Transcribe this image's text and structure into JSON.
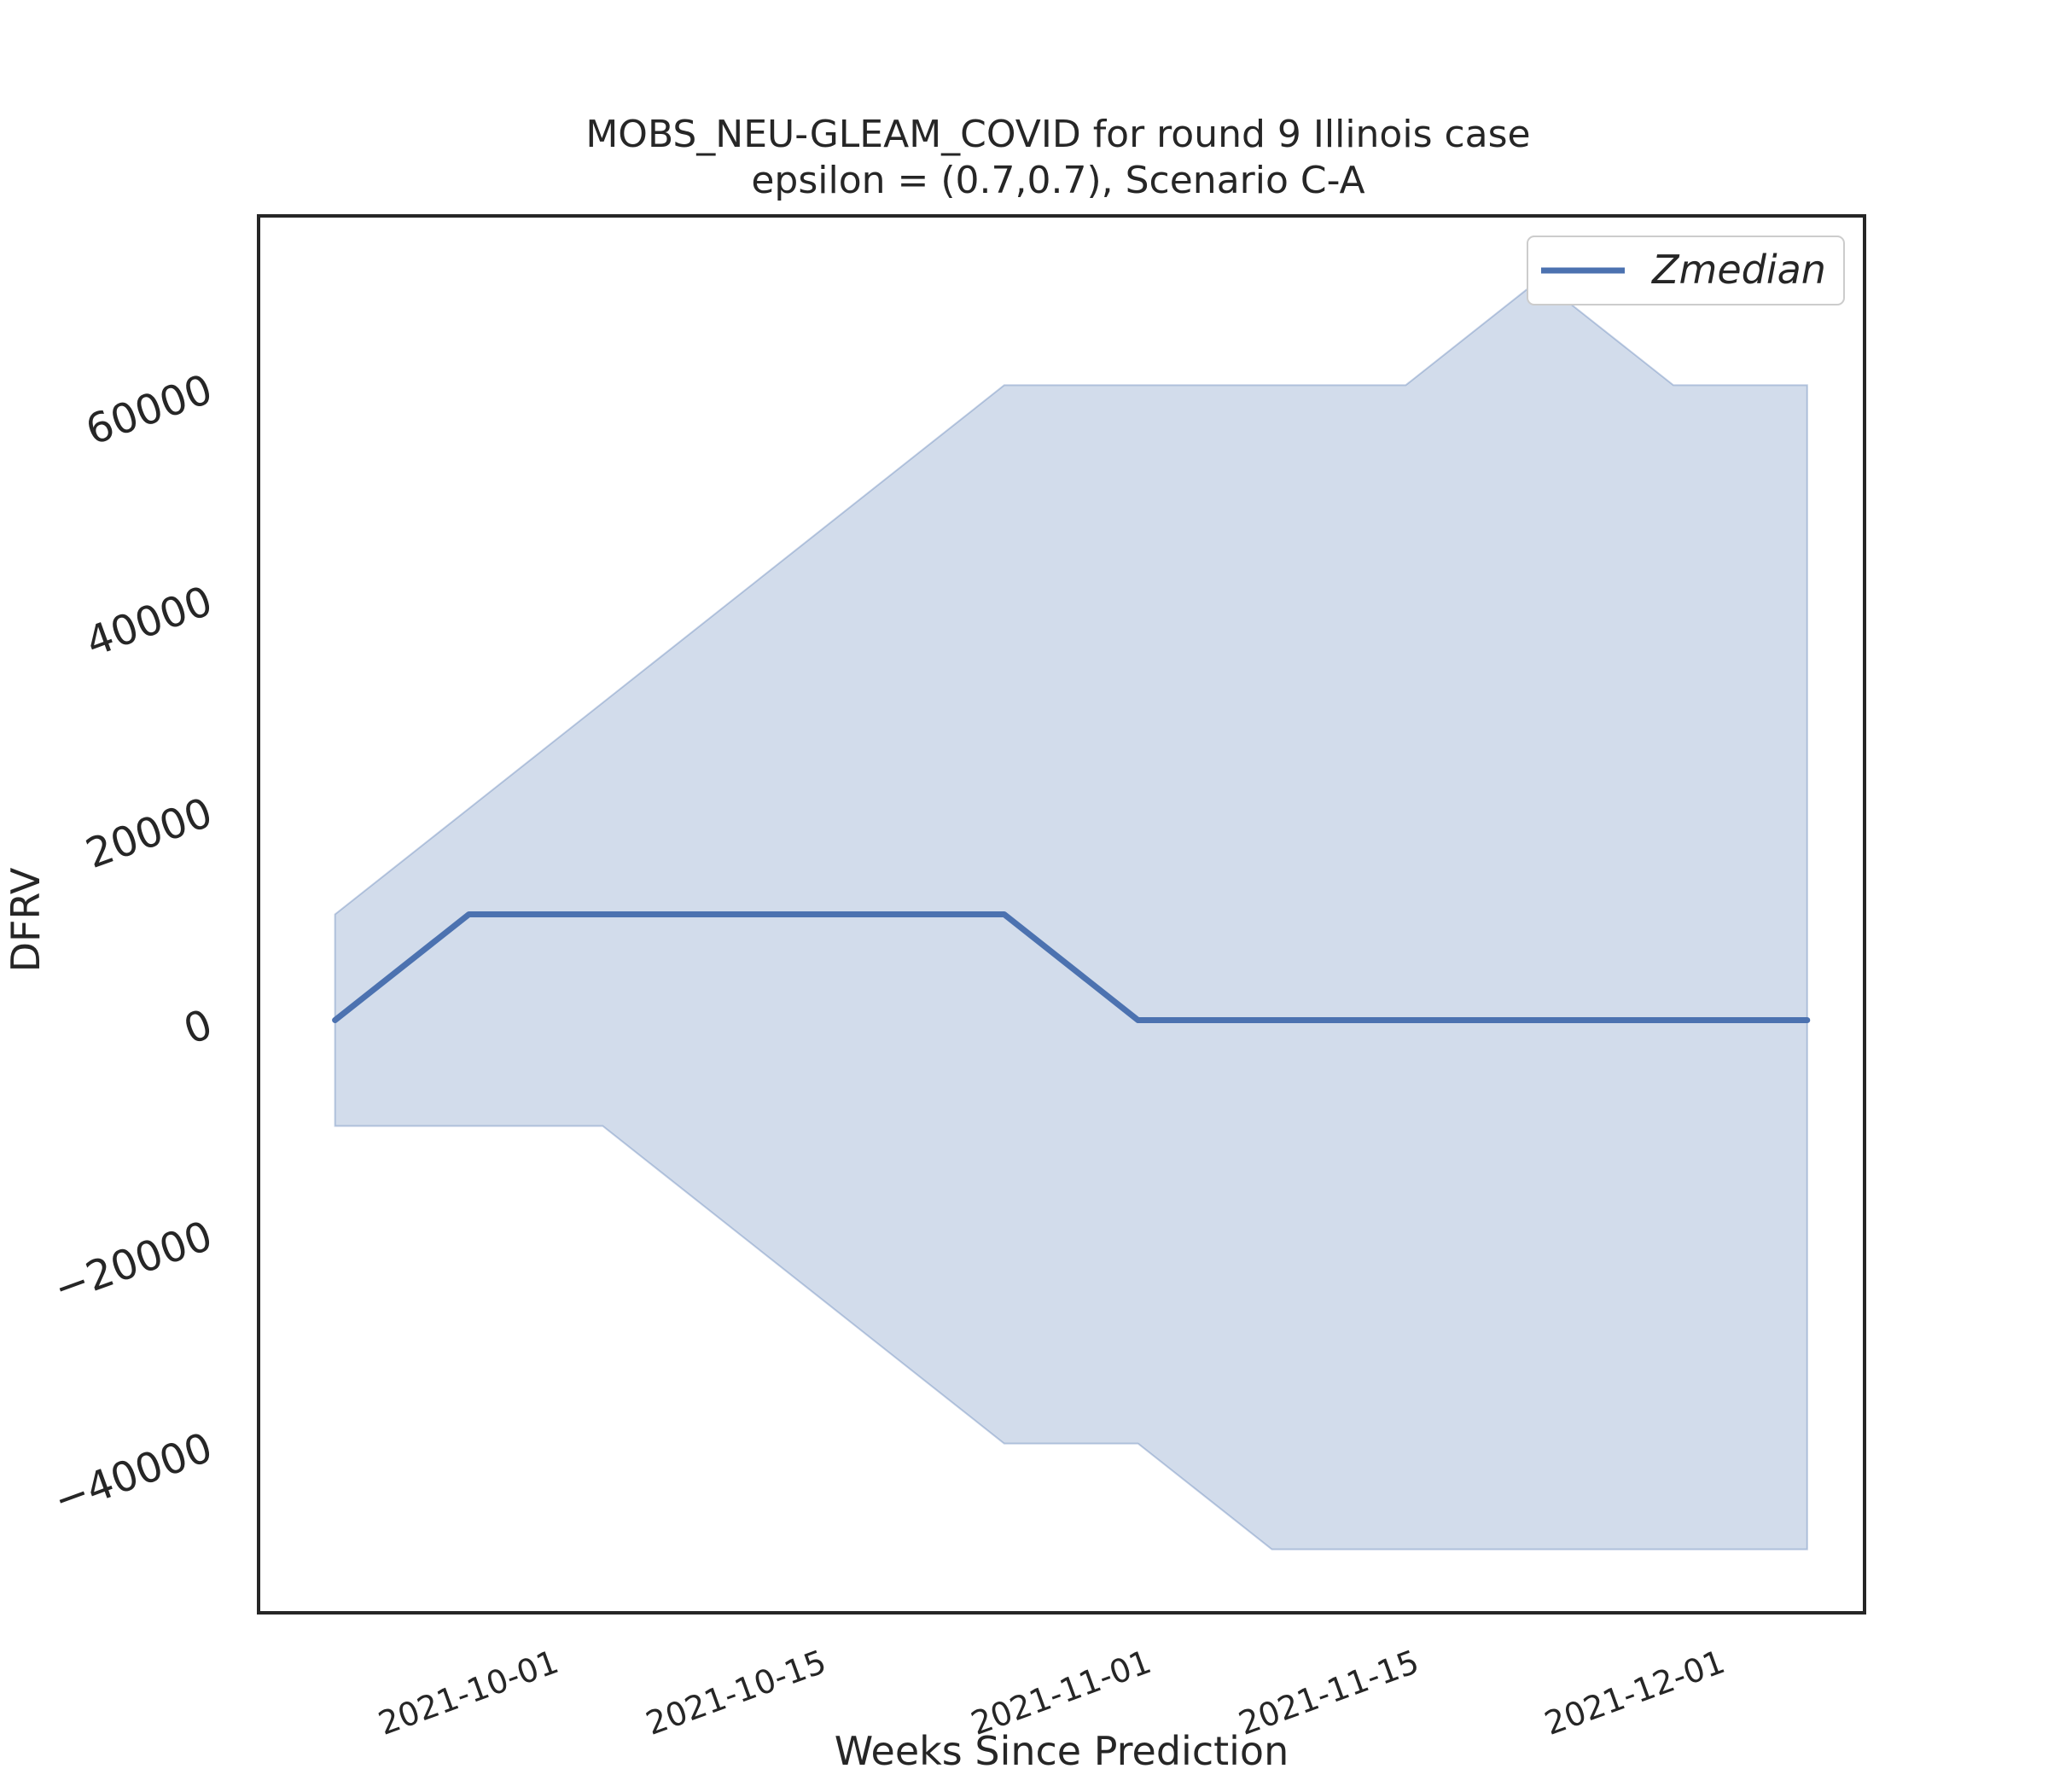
{
  "chart_data": {
    "type": "line",
    "title": "MOBS_NEU-GLEAM_COVID for round 9 Illinois  case",
    "subtitle": "epsilon = (0.7,0.7), Scenario C-A",
    "xlabel": "Weeks Since Prediction",
    "ylabel": "DFRV",
    "x_tick_labels": [
      "2021-10-01",
      "2021-10-15",
      "2021-11-01",
      "2021-11-15",
      "2021-12-01"
    ],
    "y_tick_labels": [
      "−40000",
      "−20000",
      "0",
      "20000",
      "40000",
      "60000"
    ],
    "y_tick_values": [
      -40000,
      -20000,
      0,
      20000,
      40000,
      60000
    ],
    "ylim": [
      -56000,
      76000
    ],
    "x": [
      "2021-09-20",
      "2021-09-27",
      "2021-10-04",
      "2021-10-11",
      "2021-10-18",
      "2021-10-25",
      "2021-11-01",
      "2021-11-08",
      "2021-11-15",
      "2021-11-22",
      "2021-11-29",
      "2021-12-06"
    ],
    "xlim": [
      "2021-09-16",
      "2021-12-09"
    ],
    "series": [
      {
        "name": "Zmedian",
        "color": "#4c72b0",
        "values": [
          0,
          10000,
          10000,
          10000,
          10000,
          10000,
          0,
          0,
          0,
          0,
          0,
          0
        ]
      }
    ],
    "band": {
      "color": "#4c72b0",
      "opacity": 0.25,
      "upper": [
        10000,
        20000,
        30000,
        40000,
        50000,
        60000,
        60000,
        60000,
        60000,
        70000,
        60000,
        60000
      ],
      "lower": [
        -10000,
        -10000,
        -10000,
        -20000,
        -30000,
        -40000,
        -40000,
        -50000,
        -50000,
        -50000,
        -50000,
        -50000
      ]
    },
    "legend_position": "top-right",
    "grid": false
  }
}
